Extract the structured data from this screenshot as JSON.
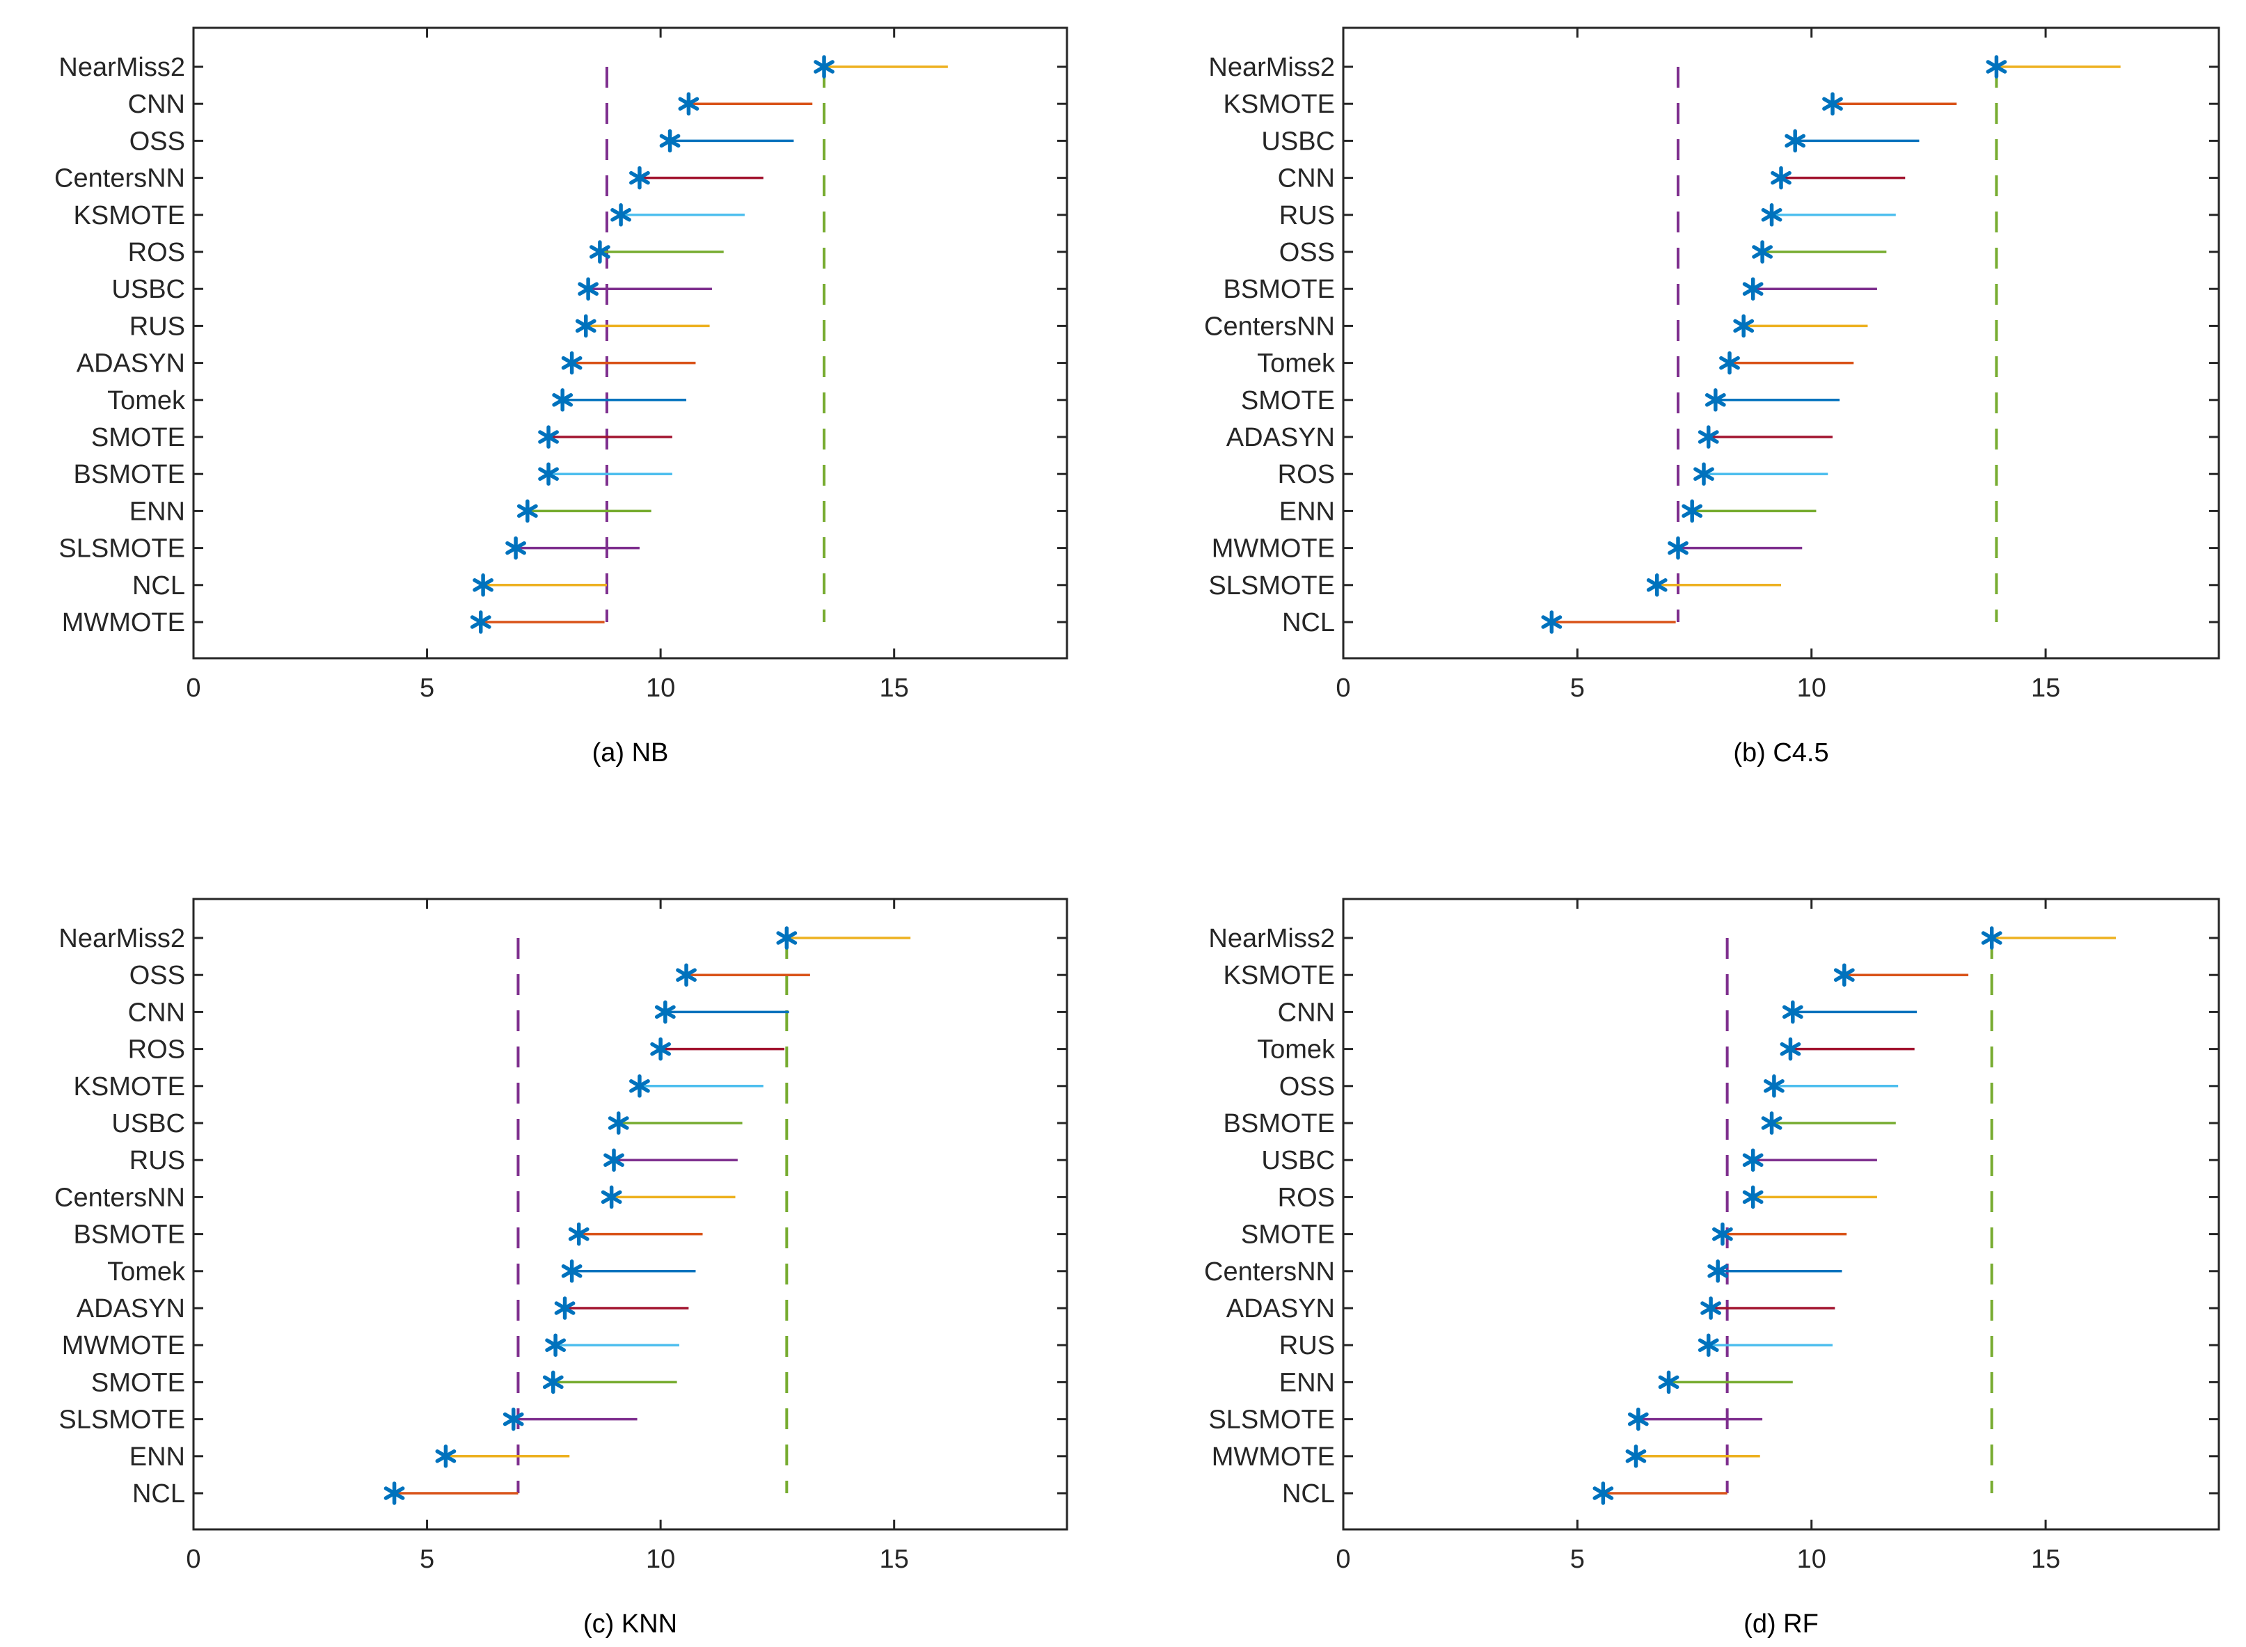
{
  "chart_data": [
    {
      "type": "critical-difference-interval",
      "title": "(a) NB",
      "xlim": [
        0,
        18.7
      ],
      "xticks": [
        0,
        5,
        10,
        15
      ],
      "interval_length": 2.65,
      "marker": "asterisk",
      "categories": [
        "NearMiss2",
        "CNN",
        "OSS",
        "CentersNN",
        "KSMOTE",
        "ROS",
        "USBC",
        "RUS",
        "ADASYN",
        "Tomek",
        "SMOTE",
        "BSMOTE",
        "ENN",
        "SLSMOTE",
        "NCL",
        "MWMOTE"
      ],
      "values": [
        13.5,
        10.6,
        10.2,
        9.55,
        9.15,
        8.7,
        8.45,
        8.4,
        8.1,
        7.9,
        7.6,
        7.6,
        7.15,
        6.9,
        6.2,
        6.15
      ],
      "reference_lines": [
        {
          "x": 13.5,
          "color": "#77AC30"
        },
        {
          "x": 8.85,
          "color": "#7E2F8E"
        }
      ]
    },
    {
      "type": "critical-difference-interval",
      "title": "(b) C4.5",
      "xlim": [
        0,
        18.7
      ],
      "xticks": [
        0,
        5,
        10,
        15
      ],
      "interval_length": 2.65,
      "marker": "asterisk",
      "categories": [
        "NearMiss2",
        "KSMOTE",
        "USBC",
        "CNN",
        "RUS",
        "OSS",
        "BSMOTE",
        "CentersNN",
        "Tomek",
        "SMOTE",
        "ADASYN",
        "ROS",
        "ENN",
        "MWMOTE",
        "SLSMOTE",
        "NCL"
      ],
      "values": [
        13.95,
        10.45,
        9.65,
        9.35,
        9.15,
        8.95,
        8.75,
        8.55,
        8.25,
        7.95,
        7.8,
        7.7,
        7.45,
        7.15,
        6.7,
        4.45
      ],
      "reference_lines": [
        {
          "x": 13.95,
          "color": "#77AC30"
        },
        {
          "x": 7.15,
          "color": "#7E2F8E"
        }
      ]
    },
    {
      "type": "critical-difference-interval",
      "title": "(c) KNN",
      "xlim": [
        0,
        18.7
      ],
      "xticks": [
        0,
        5,
        10,
        15
      ],
      "interval_length": 2.65,
      "marker": "asterisk",
      "categories": [
        "NearMiss2",
        "OSS",
        "CNN",
        "ROS",
        "KSMOTE",
        "USBC",
        "RUS",
        "CentersNN",
        "BSMOTE",
        "Tomek",
        "ADASYN",
        "MWMOTE",
        "SMOTE",
        "SLSMOTE",
        "ENN",
        "NCL"
      ],
      "values": [
        12.7,
        10.55,
        10.1,
        10.0,
        9.55,
        9.1,
        9.0,
        8.95,
        8.25,
        8.1,
        7.95,
        7.75,
        7.7,
        6.85,
        5.4,
        4.3
      ],
      "reference_lines": [
        {
          "x": 12.7,
          "color": "#77AC30"
        },
        {
          "x": 6.95,
          "color": "#7E2F8E"
        }
      ]
    },
    {
      "type": "critical-difference-interval",
      "title": "(d) RF",
      "xlim": [
        0,
        18.7
      ],
      "xticks": [
        0,
        5,
        10,
        15
      ],
      "interval_length": 2.65,
      "marker": "asterisk",
      "categories": [
        "NearMiss2",
        "KSMOTE",
        "CNN",
        "Tomek",
        "OSS",
        "BSMOTE",
        "USBC",
        "ROS",
        "SMOTE",
        "CentersNN",
        "ADASYN",
        "RUS",
        "ENN",
        "SLSMOTE",
        "MWMOTE",
        "NCL"
      ],
      "values": [
        13.85,
        10.7,
        9.6,
        9.55,
        9.2,
        9.15,
        8.75,
        8.75,
        8.1,
        8.0,
        7.85,
        7.8,
        6.95,
        6.3,
        6.25,
        5.55
      ],
      "reference_lines": [
        {
          "x": 13.85,
          "color": "#77AC30"
        },
        {
          "x": 8.2,
          "color": "#7E2F8E"
        }
      ]
    }
  ],
  "palette": {
    "line_colors": [
      "#EDB120",
      "#D95319",
      "#0072BD",
      "#A2142F",
      "#4DBEEE",
      "#77AC30",
      "#7E2F8E"
    ],
    "marker_color": "#0072BD",
    "axis_color": "#262626"
  }
}
